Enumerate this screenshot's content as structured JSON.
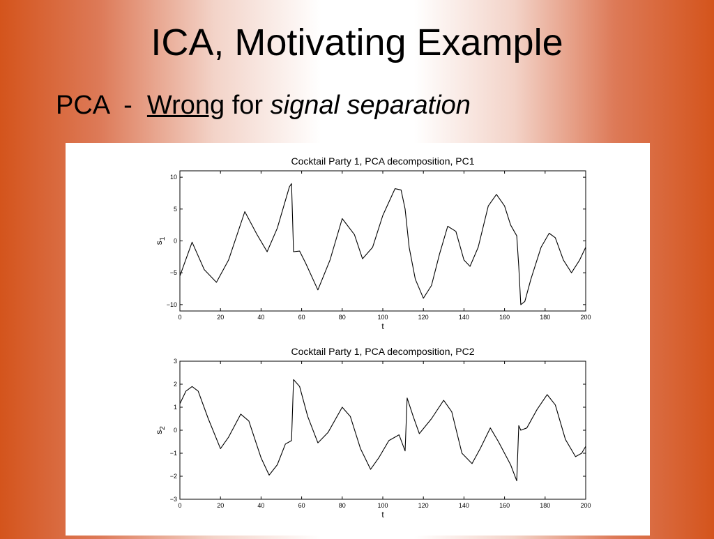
{
  "slide": {
    "title": "ICA, Motivating Example",
    "subtitle": {
      "prefix": "PCA  -  ",
      "underlined": "Wrong",
      "middle": " for ",
      "italic": "signal separation"
    }
  },
  "colors": {
    "background_edge": "#d4541c",
    "line": "#000000"
  },
  "chart_data": [
    {
      "type": "line",
      "title": "Cocktail Party 1, PCA decomposition, PC1",
      "xlabel": "t",
      "ylabel": "s",
      "ylabel_sub": "1",
      "xlim": [
        0,
        200
      ],
      "ylim": [
        -11,
        11
      ],
      "xticks": [
        0,
        20,
        40,
        60,
        80,
        100,
        120,
        140,
        160,
        180,
        200
      ],
      "yticks": [
        -10,
        -5,
        0,
        5,
        10
      ],
      "grid": false,
      "points": [
        [
          0,
          -5.5
        ],
        [
          6,
          -0.2
        ],
        [
          12,
          -4.5
        ],
        [
          18,
          -6.5
        ],
        [
          24,
          -3.0
        ],
        [
          32,
          4.6
        ],
        [
          38,
          1.0
        ],
        [
          43,
          -1.7
        ],
        [
          48,
          2.0
        ],
        [
          54,
          8.5
        ],
        [
          55,
          9.0
        ],
        [
          56,
          -1.7
        ],
        [
          59,
          -1.6
        ],
        [
          62,
          -3.5
        ],
        [
          68,
          -7.7
        ],
        [
          74,
          -3.0
        ],
        [
          80,
          3.5
        ],
        [
          86,
          1.0
        ],
        [
          90,
          -2.8
        ],
        [
          95,
          -1.0
        ],
        [
          100,
          4.0
        ],
        [
          106,
          8.2
        ],
        [
          109,
          8.0
        ],
        [
          111,
          5.0
        ],
        [
          113,
          -1.0
        ],
        [
          116,
          -6.0
        ],
        [
          120,
          -9.0
        ],
        [
          124,
          -7.0
        ],
        [
          128,
          -2.0
        ],
        [
          132,
          2.3
        ],
        [
          136,
          1.5
        ],
        [
          140,
          -3.0
        ],
        [
          143,
          -4.0
        ],
        [
          147,
          -1.0
        ],
        [
          152,
          5.5
        ],
        [
          156,
          7.3
        ],
        [
          160,
          5.5
        ],
        [
          163,
          2.5
        ],
        [
          166,
          0.8
        ],
        [
          167,
          -4.0
        ],
        [
          168,
          -10.0
        ],
        [
          170,
          -9.5
        ],
        [
          173,
          -6.0
        ],
        [
          178,
          -1.0
        ],
        [
          182,
          1.2
        ],
        [
          185,
          0.5
        ],
        [
          189,
          -3.0
        ],
        [
          193,
          -5.0
        ],
        [
          197,
          -3.0
        ],
        [
          200,
          -1.0
        ]
      ]
    },
    {
      "type": "line",
      "title": "Cocktail Party 1, PCA decomposition, PC2",
      "xlabel": "t",
      "ylabel": "s",
      "ylabel_sub": "2",
      "xlim": [
        0,
        200
      ],
      "ylim": [
        -3,
        3
      ],
      "xticks": [
        0,
        20,
        40,
        60,
        80,
        100,
        120,
        140,
        160,
        180,
        200
      ],
      "yticks": [
        -3,
        -2,
        -1,
        0,
        1,
        2,
        3
      ],
      "grid": false,
      "points": [
        [
          0,
          1.15
        ],
        [
          3,
          1.7
        ],
        [
          6,
          1.9
        ],
        [
          9,
          1.7
        ],
        [
          14,
          0.5
        ],
        [
          20,
          -0.8
        ],
        [
          24,
          -0.3
        ],
        [
          30,
          0.7
        ],
        [
          34,
          0.4
        ],
        [
          40,
          -1.2
        ],
        [
          44,
          -1.95
        ],
        [
          48,
          -1.5
        ],
        [
          52,
          -0.6
        ],
        [
          55,
          -0.45
        ],
        [
          56,
          2.2
        ],
        [
          59,
          1.9
        ],
        [
          63,
          0.6
        ],
        [
          68,
          -0.55
        ],
        [
          73,
          -0.1
        ],
        [
          80,
          1.0
        ],
        [
          84,
          0.6
        ],
        [
          89,
          -0.8
        ],
        [
          94,
          -1.7
        ],
        [
          98,
          -1.2
        ],
        [
          103,
          -0.45
        ],
        [
          108,
          -0.2
        ],
        [
          111,
          -0.9
        ],
        [
          112,
          1.4
        ],
        [
          115,
          0.6
        ],
        [
          118,
          -0.15
        ],
        [
          124,
          0.5
        ],
        [
          130,
          1.3
        ],
        [
          134,
          0.8
        ],
        [
          139,
          -1.0
        ],
        [
          144,
          -1.45
        ],
        [
          148,
          -0.8
        ],
        [
          153,
          0.1
        ],
        [
          157,
          -0.5
        ],
        [
          160,
          -1.0
        ],
        [
          163,
          -1.5
        ],
        [
          166,
          -2.2
        ],
        [
          167,
          0.2
        ],
        [
          168,
          0.0
        ],
        [
          171,
          0.1
        ],
        [
          176,
          0.9
        ],
        [
          181,
          1.55
        ],
        [
          185,
          1.1
        ],
        [
          190,
          -0.4
        ],
        [
          195,
          -1.15
        ],
        [
          198,
          -1.0
        ],
        [
          200,
          -0.7
        ]
      ]
    }
  ]
}
